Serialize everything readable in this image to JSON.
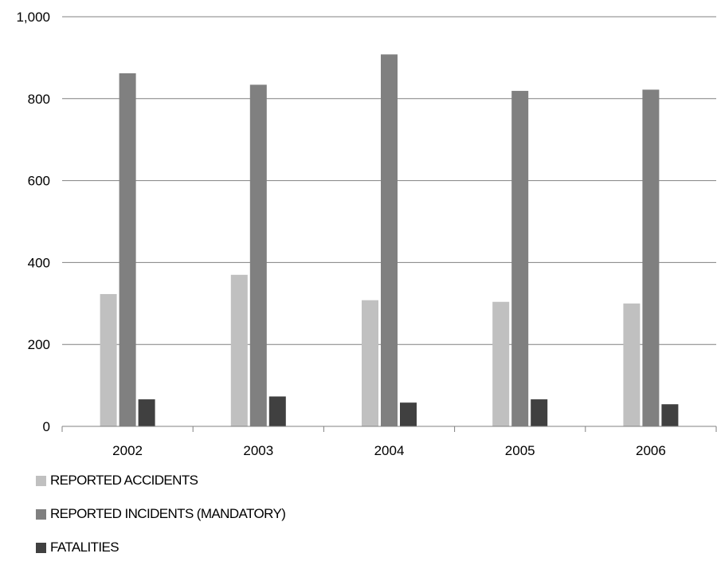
{
  "chart_data": {
    "type": "bar",
    "categories": [
      "2002",
      "2003",
      "2004",
      "2005",
      "2006"
    ],
    "series": [
      {
        "name": "REPORTED ACCIDENTS",
        "color": "#c0c0c0",
        "values": [
          323,
          370,
          308,
          304,
          300
        ]
      },
      {
        "name": "REPORTED INCIDENTS (MANDATORY)",
        "color": "#808080",
        "values": [
          862,
          834,
          908,
          819,
          822
        ]
      },
      {
        "name": "FATALITIES",
        "color": "#404040",
        "values": [
          66,
          73,
          58,
          66,
          54
        ]
      }
    ],
    "y_ticks": [
      "0",
      "200",
      "400",
      "600",
      "800",
      "1,000"
    ],
    "ylim": [
      0,
      1000
    ],
    "grid": true,
    "legend_position": "bottom-left"
  }
}
